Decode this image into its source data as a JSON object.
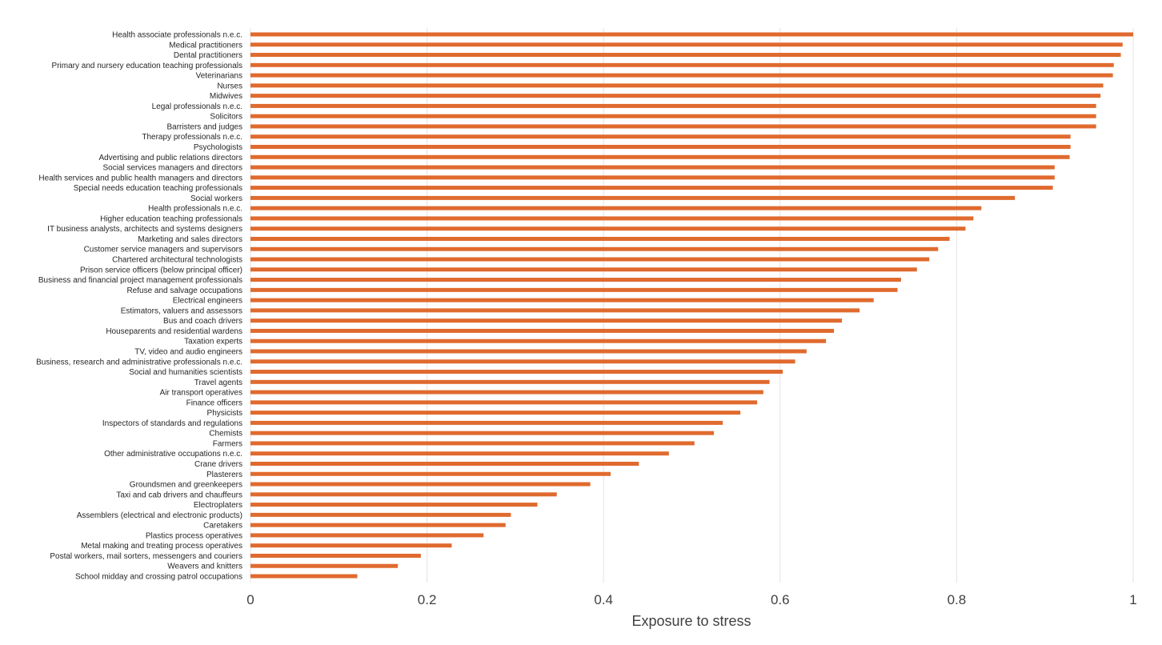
{
  "chart_data": {
    "type": "bar",
    "orientation": "horizontal",
    "title": "",
    "xlabel": "Exposure to stress",
    "ylabel": "",
    "xlim": [
      0,
      1
    ],
    "xticks": [
      0,
      0.2,
      0.4,
      0.6,
      0.8,
      1
    ],
    "xtick_labels": [
      "0",
      "0.2",
      "0.4",
      "0.6",
      "0.8",
      "1"
    ],
    "grid": "vertical",
    "bar_color": "#e06a2e",
    "categories": [
      "Health associate professionals n.e.c.",
      "Medical practitioners",
      "Dental practitioners",
      "Primary and nursery education teaching professionals",
      "Veterinarians",
      "Nurses",
      "Midwives",
      "Legal professionals n.e.c.",
      "Solicitors",
      "Barristers and judges",
      "Therapy professionals n.e.c.",
      "Psychologists",
      "Advertising and public relations directors",
      "Social services managers and directors",
      "Health services and public health managers and directors",
      "Special needs education teaching professionals",
      "Social workers",
      "Health professionals n.e.c.",
      "Higher education teaching professionals",
      "IT business analysts, architects and systems designers",
      "Marketing and sales directors",
      "Customer service managers and supervisors",
      "Chartered architectural technologists",
      "Prison service officers (below principal officer)",
      "Business and financial project management professionals",
      "Refuse and salvage occupations",
      "Electrical engineers",
      "Estimators, valuers and assessors",
      "Bus and coach drivers",
      "Houseparents and residential wardens",
      "Taxation experts",
      "TV, video and audio engineers",
      "Business, research and administrative professionals n.e.c.",
      "Social and humanities scientists",
      "Travel agents",
      "Air transport operatives",
      "Finance officers",
      "Physicists",
      "Inspectors of standards and regulations",
      "Chemists",
      "Farmers",
      "Other administrative occupations n.e.c.",
      "Crane drivers",
      "Plasterers",
      "Groundsmen and greenkeepers",
      "Taxi and cab drivers and chauffeurs",
      "Electroplaters",
      "Assemblers (electrical and electronic products)",
      "Caretakers",
      "Plastics process operatives",
      "Metal making and treating process operatives",
      "Postal workers, mail sorters, messengers and couriers",
      "Weavers and knitters",
      "School midday and crossing patrol occupations"
    ],
    "values": [
      1.0,
      0.988,
      0.986,
      0.978,
      0.977,
      0.966,
      0.963,
      0.958,
      0.958,
      0.958,
      0.929,
      0.929,
      0.928,
      0.911,
      0.911,
      0.909,
      0.866,
      0.828,
      0.819,
      0.81,
      0.792,
      0.779,
      0.769,
      0.755,
      0.737,
      0.733,
      0.706,
      0.69,
      0.67,
      0.661,
      0.652,
      0.63,
      0.617,
      0.603,
      0.588,
      0.581,
      0.574,
      0.555,
      0.535,
      0.525,
      0.503,
      0.474,
      0.44,
      0.408,
      0.385,
      0.347,
      0.325,
      0.295,
      0.289,
      0.264,
      0.228,
      0.193,
      0.167,
      0.121
    ]
  }
}
